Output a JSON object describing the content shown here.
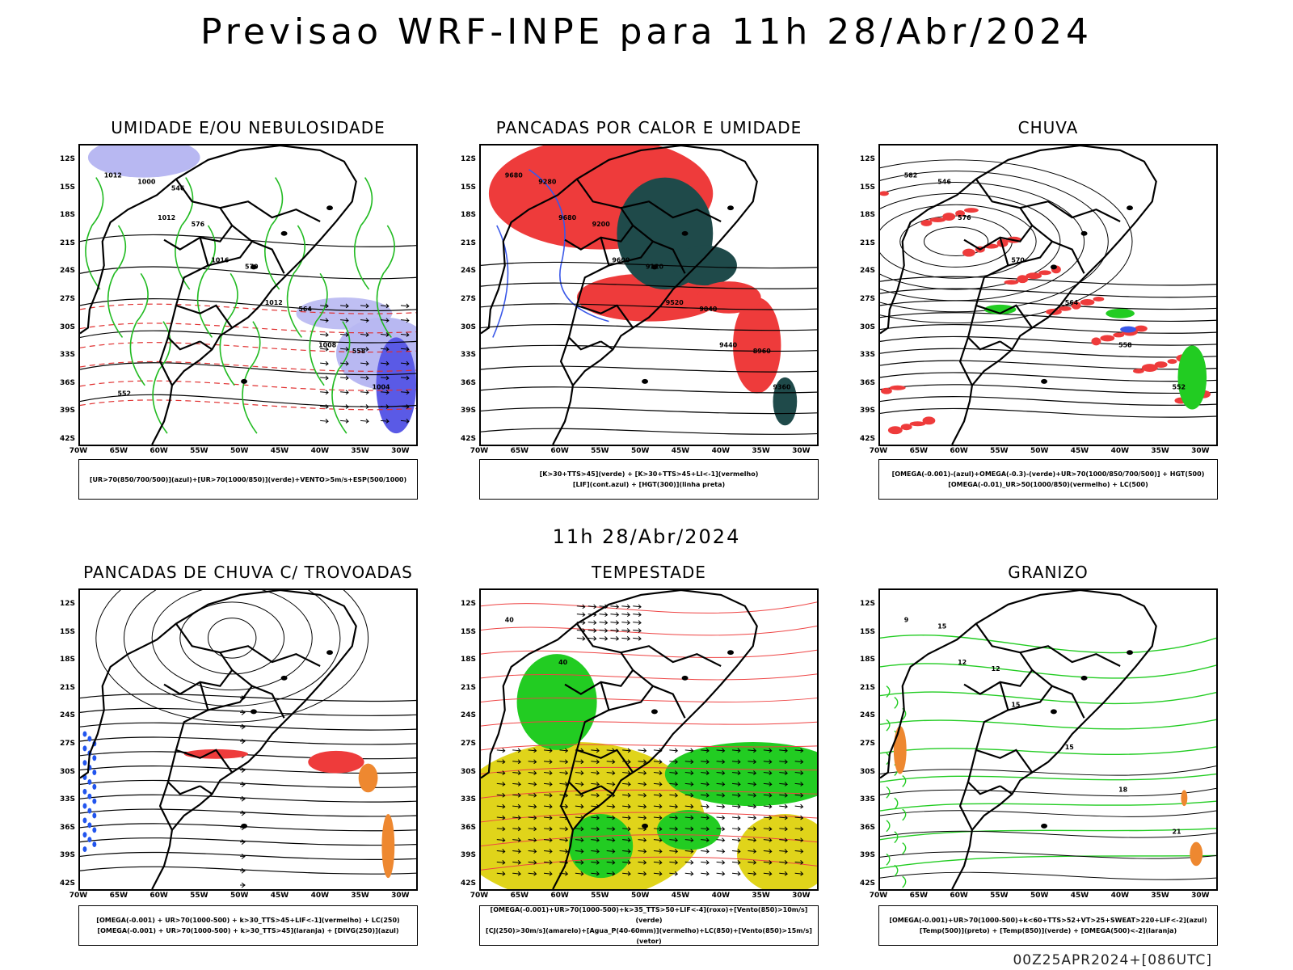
{
  "title": "Previsao WRF-INPE  para 11h 28/Abr/2024",
  "mid_title": "11h 28/Abr/2024",
  "footer": "00Z25APR2024+[086UTC]",
  "lat_labels": [
    "12S",
    "15S",
    "18S",
    "21S",
    "24S",
    "27S",
    "30S",
    "33S",
    "36S",
    "39S",
    "42S"
  ],
  "lon_labels": [
    "70W",
    "65W",
    "60W",
    "55W",
    "50W",
    "45W",
    "40W",
    "35W",
    "30W"
  ],
  "panels": [
    {
      "title": "UMIDADE E/OU NEBULOSIDADE",
      "legend": [
        "[UR>70(850/700/500)](azul)+[UR>70(1000/850)](verde)+VENTO>5m/s+ESP(500/1000)"
      ],
      "labels": [
        "1012",
        "1012",
        "1016",
        "1012",
        "1008",
        "1004",
        "1000",
        "576",
        "570",
        "564",
        "558",
        "552",
        "546"
      ]
    },
    {
      "title": "PANCADAS POR CALOR E UMIDADE",
      "legend": [
        "[K>30+TTS>45](verde) + [K>30+TTS>45+LI<-1](vermelho)",
        "[LIF](cont.azul) + [HGT(300)](linha preta)"
      ],
      "labels": [
        "9680",
        "9680",
        "9600",
        "9520",
        "9440",
        "9360",
        "9280",
        "9200",
        "9120",
        "9040",
        "8960"
      ]
    },
    {
      "title": "CHUVA",
      "legend": [
        "[OMEGA(-0.001)-(azul)+OMEGA(-0.3)-(verde)+UR>70(1000/850/700/500)] + HGT(500)",
        "[OMEGA(-0.01)_UR>50(1000/850)(vermelho) + LC(500)"
      ],
      "labels": [
        "582",
        "576",
        "570",
        "564",
        "558",
        "552",
        "546"
      ]
    },
    {
      "title": "PANCADAS DE CHUVA C/ TROVOADAS",
      "legend": [
        "[OMEGA(-0.001) + UR>70(1000-500) + k>30_TTS>45+LIF<-1](vermelho) + LC(250)",
        "[OMEGA(-0.001) + UR>70(1000-500) + k>30_TTS>45](laranja) + [DIVG(250)](azul)"
      ],
      "labels": []
    },
    {
      "title": "TEMPESTADE",
      "legend": [
        "[OMEGA(-0.001)+UR>70(1000-500)+k>35_TTS>50+LIF<-4](roxo)+[Vento(850)>10m/s](verde)",
        "[CJ(250)>30m/s](amarelo)+[Agua_P(40-60mm)](vermelho)+LC(850)+[Vento(850)>15m/s](vetor)"
      ],
      "labels": [
        "40",
        "40"
      ]
    },
    {
      "title": "GRANIZO",
      "legend": [
        "[OMEGA(-0.001)+UR>70(1000-500)+k<60+TTS>52+VT>25+SWEAT>220+LIF<-2](azul)",
        "[Temp(500)](preto) + [Temp(850)](verde) + [OMEGA(500)<-2](laranja)"
      ],
      "labels": [
        "9",
        "12",
        "15",
        "15",
        "18",
        "21",
        "15",
        "12"
      ]
    }
  ]
}
